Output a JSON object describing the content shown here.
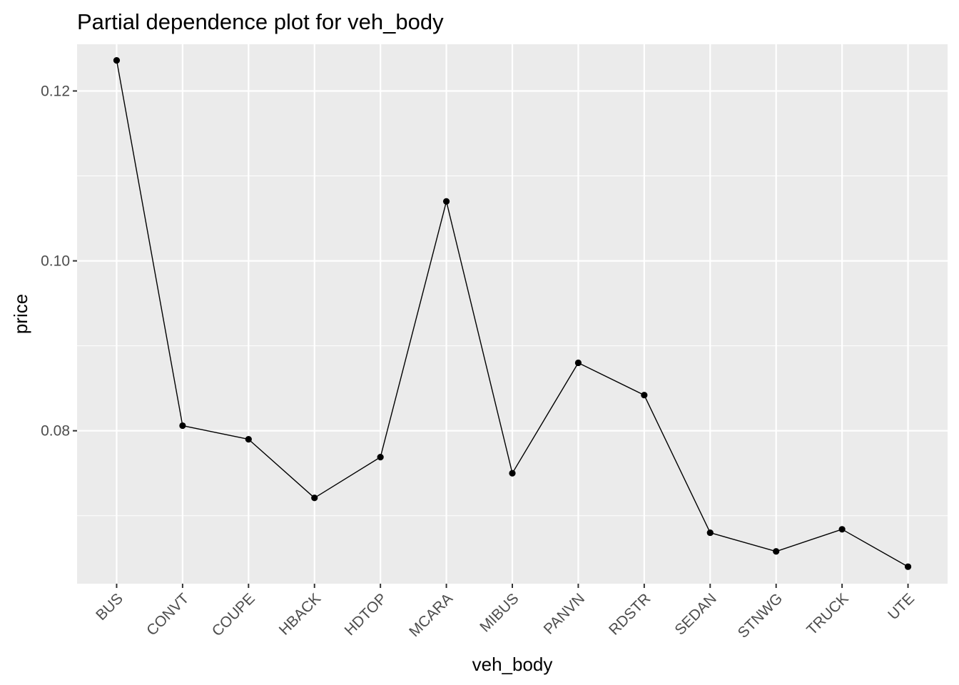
{
  "chart_data": {
    "type": "line",
    "title": "Partial dependence plot for veh_body",
    "xlabel": "veh_body",
    "ylabel": "price",
    "categories": [
      "BUS",
      "CONVT",
      "COUPE",
      "HBACK",
      "HDTOP",
      "MCARA",
      "MIBUS",
      "PANVN",
      "RDSTR",
      "SEDAN",
      "STNWG",
      "TRUCK",
      "UTE"
    ],
    "values": [
      0.1236,
      0.0806,
      0.079,
      0.0721,
      0.0769,
      0.107,
      0.075,
      0.088,
      0.0842,
      0.068,
      0.0658,
      0.0684,
      0.064
    ],
    "ylim": [
      0.062,
      0.1255
    ],
    "y_ticks": [
      0.08,
      0.1,
      0.12
    ],
    "y_tick_labels": [
      "0.08",
      "0.10",
      "0.12"
    ],
    "grid": true,
    "markers": true,
    "line_color": "#000000",
    "panel_background": "#ebebeb",
    "grid_color": "#ffffff"
  }
}
